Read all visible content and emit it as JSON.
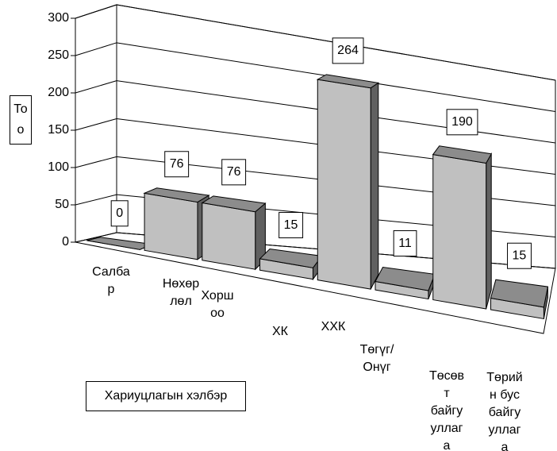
{
  "chart_data": {
    "type": "bar3d",
    "y_axis_label": "Тоо",
    "x_axis_label": "Хариуцлагын хэлбэр",
    "categories": [
      "Салба\nр",
      "Нөхөр\nлөл",
      "Хорш\nоо",
      "ХК",
      "ХХК",
      "Төгүг/\nОнүг",
      "Төсөв\nт\nбайгу\nуллаг\nа",
      "Төрий\nн бус\nбайгу\nуллаг\nа"
    ],
    "values": [
      0,
      76,
      76,
      15,
      264,
      11,
      190,
      15
    ],
    "colors": {
      "front": "#c0c0c0",
      "side": "#606060",
      "top": "#8c8c8c"
    },
    "ylim": [
      0,
      300
    ],
    "yticks": [
      0,
      50,
      100,
      150,
      200,
      250,
      300
    ],
    "grid": true
  }
}
